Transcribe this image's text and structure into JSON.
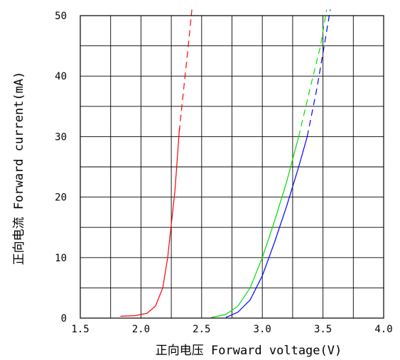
{
  "chart_data": {
    "type": "line",
    "xlabel": "正向电压  Forward voltage(V)",
    "ylabel": "正向电流  Forward current(mA)",
    "xlim": [
      1.5,
      4.0
    ],
    "ylim": [
      0,
      50
    ],
    "x_ticks": [
      "1.5",
      "2.0",
      "2.5",
      "3.0",
      "3.5",
      "4.0"
    ],
    "y_ticks": [
      "0",
      "10",
      "20",
      "30",
      "40",
      "50"
    ],
    "grid": true,
    "legend": "none",
    "series": [
      {
        "color": "#ff0000",
        "solid": [
          [
            1.83,
            0.3
          ],
          [
            1.95,
            0.4
          ],
          [
            2.05,
            0.8
          ],
          [
            2.12,
            2.0
          ],
          [
            2.18,
            5.0
          ],
          [
            2.22,
            10.0
          ],
          [
            2.25,
            15.5
          ],
          [
            2.28,
            21.0
          ],
          [
            2.3,
            26.5
          ],
          [
            2.315,
            30.8
          ],
          [
            2.32,
            31.5
          ]
        ],
        "dashed": [
          [
            2.315,
            30.8
          ],
          [
            2.35,
            37.5
          ],
          [
            2.39,
            45.0
          ],
          [
            2.42,
            51.0
          ]
        ]
      },
      {
        "color": "#00dd00",
        "solid": [
          [
            2.58,
            0.1
          ],
          [
            2.7,
            0.6
          ],
          [
            2.8,
            2.0
          ],
          [
            2.9,
            5.0
          ],
          [
            3.0,
            10.0
          ],
          [
            3.1,
            16.0
          ],
          [
            3.2,
            22.5
          ],
          [
            3.3,
            30.0
          ]
        ],
        "dashed": [
          [
            3.3,
            30.0
          ],
          [
            3.4,
            38.5
          ],
          [
            3.48,
            45.0
          ],
          [
            3.53,
            51.0
          ]
        ]
      },
      {
        "color": "#0000ff",
        "solid": [
          [
            2.7,
            0.1
          ],
          [
            2.8,
            1.0
          ],
          [
            2.9,
            3.0
          ],
          [
            3.0,
            7.0
          ],
          [
            3.1,
            12.5
          ],
          [
            3.2,
            18.5
          ],
          [
            3.3,
            25.0
          ],
          [
            3.37,
            30.0
          ]
        ],
        "dashed": [
          [
            3.37,
            30.0
          ],
          [
            3.45,
            38.0
          ],
          [
            3.51,
            45.0
          ],
          [
            3.56,
            51.0
          ]
        ]
      }
    ]
  }
}
